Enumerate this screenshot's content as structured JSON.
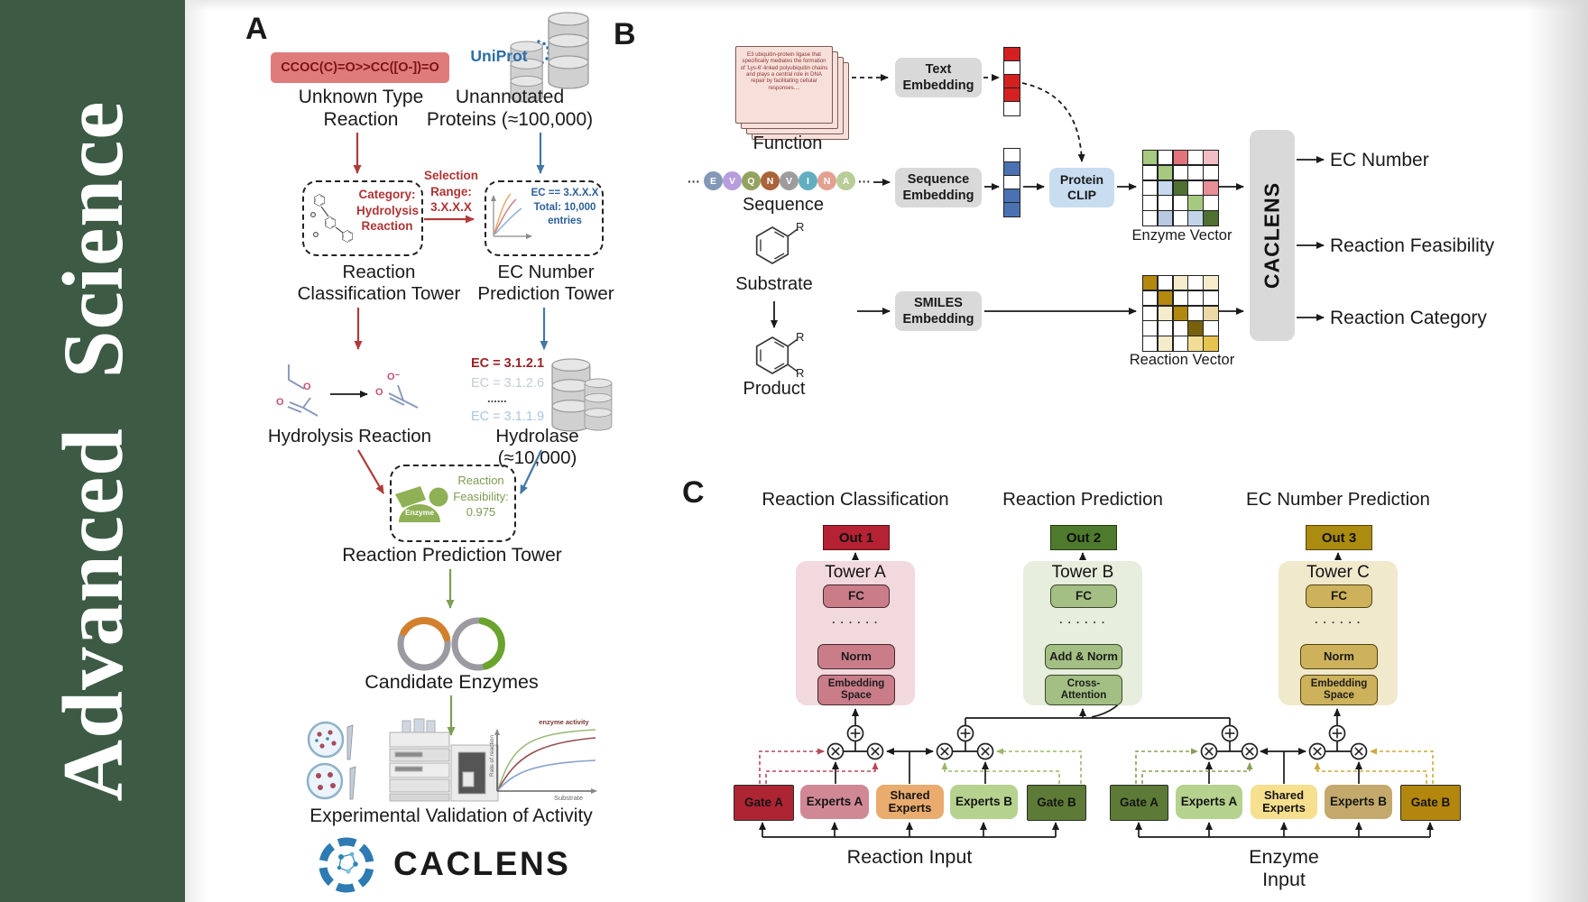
{
  "journal": {
    "title": "Advanced Science"
  },
  "a": {
    "label": "A",
    "smiles": "CCOC(C)=O>>CC([O-])=O",
    "unknown": "Unknown Type\nReaction",
    "uniprot": "UniProt",
    "unannotated": "Unannotated\nProteins (≈100,000)",
    "category": "Category:\nHydrolysis\nReaction",
    "selection": "Selection\nRange:\n3.X.X.X",
    "ec_box": "EC == 3.X.X.X\nTotal: 10,000\nentries",
    "class_tower": "Reaction\nClassification Tower",
    "ec_tower": "EC Number\nPrediction Tower",
    "ec_list": [
      "EC = 3.1.2.1",
      "EC = 3.1.2.6",
      "......",
      "EC = 3.1.1.9"
    ],
    "hydrolysis": "Hydrolysis Reaction",
    "hydrolase": "Hydrolase (≈10,000)",
    "enzyme": "Enzyme",
    "feasibility": "Reaction\nFeasibility:\n0.975",
    "pred_tower": "Reaction Prediction Tower",
    "candidates": "Candidate Enzymes",
    "validation": "Experimental Validation of Activity",
    "logo": "CACLENS",
    "atoms": {
      "o_ester_mid": "O",
      "o_ester_dbl": "O",
      "o_minus": "O⁻",
      "o_prod_dbl": "O"
    },
    "plot": {
      "label": "enzyme activity",
      "ylabel": "Rate of reaction",
      "xlabel": "Substrate"
    }
  },
  "b": {
    "label": "B",
    "card": "E3 ubiquitin-protein ligase that specifically mediates the formation of 'Lys-6'-linked polyubiquitin chains and plays a central role in DNA repair by facilitating cellular responses....",
    "function": "Function",
    "dots": "···",
    "sequence": [
      {
        "ch": "E",
        "color": "#8398b6"
      },
      {
        "ch": "V",
        "color": "#b79ddd"
      },
      {
        "ch": "Q",
        "color": "#93a25e"
      },
      {
        "ch": "N",
        "color": "#a9643a"
      },
      {
        "ch": "V",
        "color": "#9d9d9d"
      },
      {
        "ch": "I",
        "color": "#62aebe"
      },
      {
        "ch": "N",
        "color": "#e3a192"
      },
      {
        "ch": "A",
        "color": "#bacc98"
      }
    ],
    "sequence_label": "Sequence",
    "substrate": "Substrate",
    "product": "Product",
    "r": "R",
    "text_emb": "Text\nEmbedding",
    "seq_emb": "Sequence\nEmbedding",
    "smiles_emb": "SMILES\nEmbedding",
    "clip": "Protein\nCLIP",
    "text_vec": [
      "#d42020",
      "#ffffff",
      "#d42020",
      "#d42020",
      "#ffffff"
    ],
    "seq_vec": [
      "#ffffff",
      "#4a72b2",
      "#ffffff",
      "#4a72b2",
      "#4a72b2"
    ],
    "enzyme_vec_label": "Enzyme Vector",
    "enzyme_vec": [
      "#a7c97f",
      "#ffffff",
      "#e2737a",
      "#ffffff",
      "#f2bdc3",
      "#ffffff",
      "#a7c97f",
      "#ffffff",
      "#ffffff",
      "#ffffff",
      "#ffffff",
      "#c7d9ee",
      "#4f7031",
      "#ffffff",
      "#e78f96",
      "#ffffff",
      "#ffffff",
      "#ffffff",
      "#a7c97f",
      "#ffffff",
      "#ffffff",
      "#b9c9e2",
      "#ffffff",
      "#c1d4ea",
      "#4f7031"
    ],
    "reaction_vec_label": "Reaction Vector",
    "reaction_vec": [
      "#b3880f",
      "#ffffff",
      "#f6eccb",
      "#ffffff",
      "#f6eccb",
      "#ffffff",
      "#b3880f",
      "#ffffff",
      "#ffffff",
      "#ffffff",
      "#ffffff",
      "#f6eccb",
      "#b3880f",
      "#ffffff",
      "#ecd9a5",
      "#ffffff",
      "#ffffff",
      "#ffffff",
      "#77610d",
      "#ffffff",
      "#ffffff",
      "#f6eccb",
      "#ffffff",
      "#f2dd96",
      "#e7c44f"
    ],
    "caclens": "CACLENS",
    "outputs": [
      "EC Number",
      "Reaction Feasibility",
      "Reaction Category"
    ]
  },
  "c": {
    "label": "C",
    "towers": [
      {
        "title": "Reaction Classification",
        "out": "Out 1",
        "name": "Tower A",
        "fc": "FC",
        "dots": "· · · · · ·",
        "mid": "Norm",
        "bottom": "Embedding\nSpace"
      },
      {
        "title": "Reaction Prediction",
        "out": "Out 2",
        "name": "Tower B",
        "fc": "FC",
        "dots": "· · · · · ·",
        "mid": "Add & Norm",
        "bottom": "Cross-\nAttention"
      },
      {
        "title": "EC Number Prediction",
        "out": "Out 3",
        "name": "Tower C",
        "fc": "FC",
        "dots": "· · · · · ·",
        "mid": "Norm",
        "bottom": "Embedding\nSpace"
      }
    ],
    "moe": [
      {
        "gate_a": "Gate A",
        "experts_a": "Experts A",
        "shared": "Shared\nExperts",
        "experts_b": "Experts B",
        "gate_b": "Gate B",
        "input": "Reaction Input"
      },
      {
        "gate_a": "Gate A",
        "experts_a": "Experts A",
        "shared": "Shared\nExperts",
        "experts_b": "Experts B",
        "gate_b": "Gate B",
        "input": "Enzyme Input"
      }
    ]
  }
}
